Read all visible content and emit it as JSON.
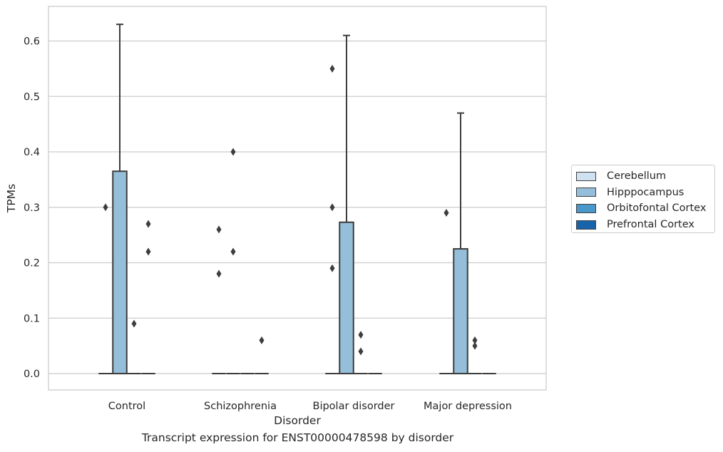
{
  "chart_data": {
    "type": "box",
    "xlabel": "Disorder",
    "ylabel": "TPMs",
    "caption": "Transcript expression for ENST00000478598 by disorder",
    "ylim": [
      -0.03,
      0.66
    ],
    "yticks": [
      "0.0",
      "0.1",
      "0.2",
      "0.3",
      "0.4",
      "0.5",
      "0.6"
    ],
    "grid": "horizontal",
    "legend_position": "right",
    "categories": [
      "Control",
      "Schizophrenia",
      "Bipolar disorder",
      "Major depression"
    ],
    "series": [
      {
        "name": "Cerebellum",
        "color": "#d0e1f2",
        "boxes": [
          {
            "q1": 0.0,
            "median": 0.0,
            "q3": 0.0,
            "whisker_low": 0.0,
            "whisker_high": 0.0,
            "outliers": [
              0.3
            ]
          },
          {
            "q1": 0.0,
            "median": 0.0,
            "q3": 0.0,
            "whisker_low": 0.0,
            "whisker_high": 0.0,
            "outliers": [
              0.26,
              0.18
            ]
          },
          {
            "q1": 0.0,
            "median": 0.0,
            "q3": 0.0,
            "whisker_low": 0.0,
            "whisker_high": 0.0,
            "outliers": [
              0.55,
              0.3,
              0.19
            ]
          },
          {
            "q1": 0.0,
            "median": 0.0,
            "q3": 0.0,
            "whisker_low": 0.0,
            "whisker_high": 0.0,
            "outliers": [
              0.29
            ]
          }
        ]
      },
      {
        "name": "Hipppocampus",
        "color": "#94bed9",
        "boxes": [
          {
            "q1": 0.0,
            "median": 0.0,
            "q3": 0.365,
            "whisker_low": 0.0,
            "whisker_high": 0.63,
            "outliers": []
          },
          {
            "q1": 0.0,
            "median": 0.0,
            "q3": 0.0,
            "whisker_low": 0.0,
            "whisker_high": 0.0,
            "outliers": [
              0.4,
              0.22
            ]
          },
          {
            "q1": 0.0,
            "median": 0.0,
            "q3": 0.273,
            "whisker_low": 0.0,
            "whisker_high": 0.61,
            "outliers": []
          },
          {
            "q1": 0.0,
            "median": 0.0,
            "q3": 0.225,
            "whisker_low": 0.0,
            "whisker_high": 0.47,
            "outliers": []
          }
        ]
      },
      {
        "name": "Orbitofontal Cortex",
        "color": "#4a98c9",
        "boxes": [
          {
            "q1": 0.0,
            "median": 0.0,
            "q3": 0.0,
            "whisker_low": 0.0,
            "whisker_high": 0.0,
            "outliers": [
              0.09
            ]
          },
          {
            "q1": 0.0,
            "median": 0.0,
            "q3": 0.0,
            "whisker_low": 0.0,
            "whisker_high": 0.0,
            "outliers": []
          },
          {
            "q1": 0.0,
            "median": 0.0,
            "q3": 0.0,
            "whisker_low": 0.0,
            "whisker_high": 0.0,
            "outliers": [
              0.07,
              0.04
            ]
          },
          {
            "q1": 0.0,
            "median": 0.0,
            "q3": 0.0,
            "whisker_low": 0.0,
            "whisker_high": 0.0,
            "outliers": [
              0.06,
              0.05
            ]
          }
        ]
      },
      {
        "name": "Prefrontal Cortex",
        "color": "#1764ab",
        "boxes": [
          {
            "q1": 0.0,
            "median": 0.0,
            "q3": 0.0,
            "whisker_low": 0.0,
            "whisker_high": 0.0,
            "outliers": [
              0.27,
              0.22
            ]
          },
          {
            "q1": 0.0,
            "median": 0.0,
            "q3": 0.0,
            "whisker_low": 0.0,
            "whisker_high": 0.0,
            "outliers": [
              0.06
            ]
          },
          {
            "q1": 0.0,
            "median": 0.0,
            "q3": 0.0,
            "whisker_low": 0.0,
            "whisker_high": 0.0,
            "outliers": []
          },
          {
            "q1": 0.0,
            "median": 0.0,
            "q3": 0.0,
            "whisker_low": 0.0,
            "whisker_high": 0.0,
            "outliers": []
          }
        ]
      }
    ]
  }
}
